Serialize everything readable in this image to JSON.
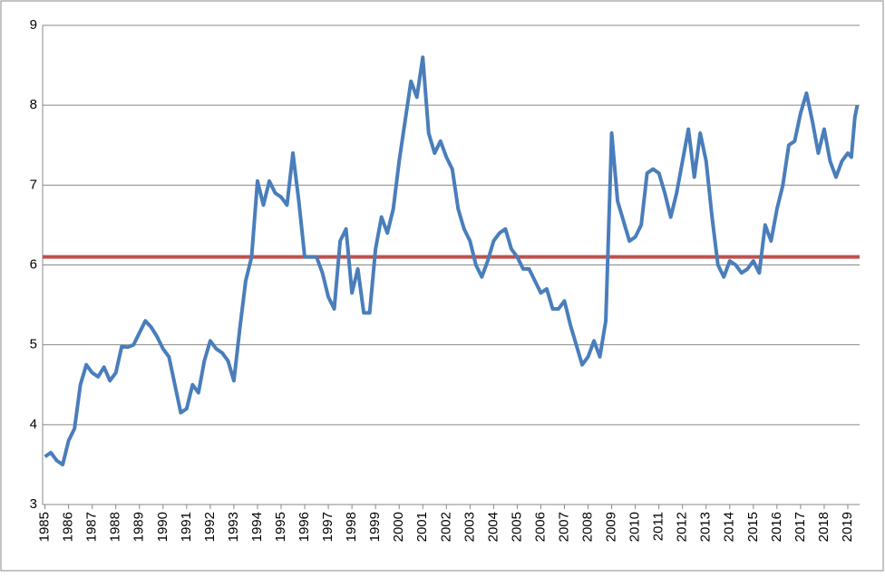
{
  "chart_data": {
    "type": "line",
    "x": [
      1985,
      1985.25,
      1985.5,
      1985.75,
      1986,
      1986.25,
      1986.5,
      1986.75,
      1987,
      1987.25,
      1987.5,
      1987.75,
      1988,
      1988.25,
      1988.5,
      1988.75,
      1989,
      1989.25,
      1989.5,
      1989.75,
      1990,
      1990.25,
      1990.5,
      1990.75,
      1991,
      1991.25,
      1991.5,
      1991.75,
      1992,
      1992.25,
      1992.5,
      1992.75,
      1993,
      1993.25,
      1993.5,
      1993.75,
      1994,
      1994.25,
      1994.5,
      1994.75,
      1995,
      1995.25,
      1995.5,
      1995.75,
      1996,
      1996.25,
      1996.5,
      1996.75,
      1997,
      1997.25,
      1997.5,
      1997.75,
      1998,
      1998.25,
      1998.5,
      1998.75,
      1999,
      1999.25,
      1999.5,
      1999.75,
      2000,
      2000.25,
      2000.5,
      2000.75,
      2001,
      2001.25,
      2001.5,
      2001.75,
      2002,
      2002.25,
      2002.5,
      2002.75,
      2003,
      2003.25,
      2003.5,
      2003.75,
      2004,
      2004.25,
      2004.5,
      2004.75,
      2005,
      2005.25,
      2005.5,
      2005.75,
      2006,
      2006.25,
      2006.5,
      2006.75,
      2007,
      2007.25,
      2007.5,
      2007.75,
      2008,
      2008.25,
      2008.5,
      2008.75,
      2009,
      2009.25,
      2009.5,
      2009.75,
      2010,
      2010.25,
      2010.5,
      2010.75,
      2011,
      2011.25,
      2011.5,
      2011.75,
      2012,
      2012.25,
      2012.5,
      2012.75,
      2013,
      2013.25,
      2013.5,
      2013.75,
      2014,
      2014.25,
      2014.5,
      2014.75,
      2015,
      2015.25,
      2015.5,
      2015.75,
      2016,
      2016.25,
      2016.5,
      2016.75,
      2017,
      2017.25,
      2017.5,
      2017.75,
      2018,
      2018.25,
      2018.5,
      2018.75,
      2019,
      2019.15,
      2019.3,
      2019.4
    ],
    "series": [
      {
        "color": "#4a7ebb",
        "values": [
          3.6,
          3.65,
          3.55,
          3.5,
          3.8,
          3.95,
          4.5,
          4.75,
          4.65,
          4.6,
          4.72,
          4.55,
          4.65,
          4.98,
          4.97,
          5.0,
          5.15,
          5.3,
          5.22,
          5.1,
          4.95,
          4.85,
          4.5,
          4.15,
          4.2,
          4.5,
          4.4,
          4.8,
          5.05,
          4.95,
          4.9,
          4.8,
          4.55,
          5.2,
          5.8,
          6.1,
          7.05,
          6.75,
          7.05,
          6.9,
          6.85,
          6.75,
          7.4,
          6.8,
          6.1,
          6.1,
          6.1,
          5.9,
          5.6,
          5.45,
          6.3,
          6.45,
          5.65,
          5.95,
          5.4,
          5.4,
          6.2,
          6.6,
          6.4,
          6.7,
          7.3,
          7.8,
          8.3,
          8.1,
          8.6,
          7.65,
          7.4,
          7.55,
          7.35,
          7.2,
          6.7,
          6.45,
          6.3,
          6.0,
          5.85,
          6.05,
          6.3,
          6.4,
          6.45,
          6.2,
          6.1,
          5.95,
          5.95,
          5.8,
          5.65,
          5.7,
          5.45,
          5.45,
          5.55,
          5.25,
          5.0,
          4.75,
          4.85,
          5.05,
          4.85,
          5.3,
          7.65,
          6.8,
          6.55,
          6.3,
          6.35,
          6.5,
          7.15,
          7.2,
          7.15,
          6.9,
          6.6,
          6.9,
          7.3,
          7.7,
          7.1,
          7.65,
          7.3,
          6.6,
          6.0,
          5.85,
          6.05,
          6.0,
          5.9,
          5.95,
          6.05,
          5.9,
          6.5,
          6.3,
          6.7,
          7.0,
          7.5,
          7.55,
          7.9,
          8.15,
          7.8,
          7.4,
          7.7,
          7.3,
          7.1,
          7.3,
          7.4,
          7.35,
          7.85,
          8.0
        ]
      }
    ],
    "reference_lines": [
      {
        "value": 6.1,
        "color": "#c0504d"
      }
    ],
    "xlim": [
      1984.9,
      2019.5
    ],
    "xticks": [
      1985,
      1986,
      1987,
      1988,
      1989,
      1990,
      1991,
      1992,
      1993,
      1994,
      1995,
      1996,
      1997,
      1998,
      1999,
      2000,
      2001,
      2002,
      2003,
      2004,
      2005,
      2006,
      2007,
      2008,
      2009,
      2010,
      2011,
      2012,
      2013,
      2014,
      2015,
      2016,
      2017,
      2018,
      2019
    ],
    "ylim": [
      3,
      9
    ],
    "yticks": [
      3,
      4,
      5,
      6,
      7,
      8,
      9
    ],
    "grid": true
  }
}
